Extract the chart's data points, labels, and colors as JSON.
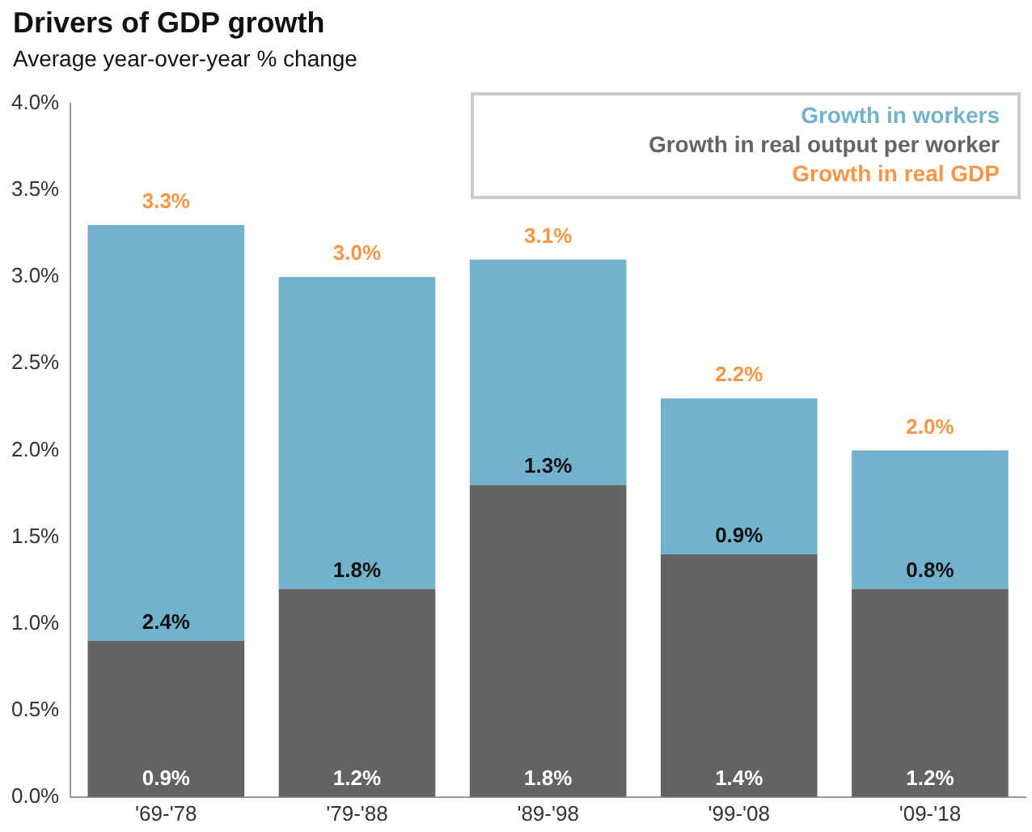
{
  "chart_data": {
    "type": "bar",
    "title": "Drivers of GDP growth",
    "subtitle": "Average year-over-year % change",
    "categories": [
      "'69-'78",
      "'79-'88",
      "'89-'98",
      "'99-'08",
      "'09-'18"
    ],
    "stacked": true,
    "series": [
      {
        "name": "Growth in real output per worker",
        "color": "#636363",
        "values": [
          0.9,
          1.2,
          1.8,
          1.4,
          1.2
        ],
        "value_labels": [
          "0.9%",
          "1.2%",
          "1.8%",
          "1.4%",
          "1.2%"
        ]
      },
      {
        "name": "Growth in workers",
        "color": "#72b2cc",
        "values": [
          2.4,
          1.8,
          1.3,
          0.9,
          0.8
        ],
        "value_labels": [
          "2.4%",
          "1.8%",
          "1.3%",
          "0.9%",
          "0.8%"
        ]
      }
    ],
    "totals": [
      "3.3%",
      "3.0%",
      "3.1%",
      "2.2%",
      "2.0%"
    ],
    "annotations": [
      "Growth in real GDP"
    ],
    "ylim": [
      0,
      4
    ],
    "yticks": [
      {
        "value": 0,
        "label": "0.0%"
      },
      {
        "value": 0.5,
        "label": "0.5%"
      },
      {
        "value": 1,
        "label": "1.0%"
      },
      {
        "value": 1.5,
        "label": "1.5%"
      },
      {
        "value": 2,
        "label": "2.0%"
      },
      {
        "value": 2.5,
        "label": "2.5%"
      },
      {
        "value": 3,
        "label": "3.0%"
      },
      {
        "value": 3.5,
        "label": "3.5%"
      },
      {
        "value": 4,
        "label": "4.0%"
      }
    ],
    "grid": false,
    "legend": "top right"
  }
}
